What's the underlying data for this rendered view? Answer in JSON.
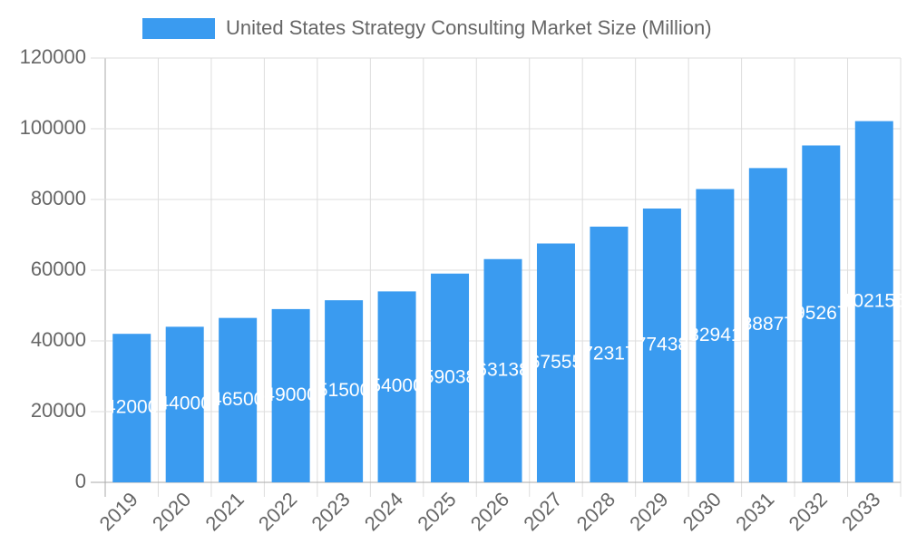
{
  "chart_data": {
    "type": "bar",
    "legend_label": "United States Strategy Consulting Market Size (Million)",
    "categories": [
      "2019",
      "2020",
      "2021",
      "2022",
      "2023",
      "2024",
      "2025",
      "2026",
      "2027",
      "2028",
      "2029",
      "2030",
      "2031",
      "2032",
      "2033"
    ],
    "values": [
      42000,
      44000,
      46500,
      49000,
      51500,
      54000,
      59038,
      63138,
      67555,
      72317,
      77438,
      82941,
      88877,
      95267,
      102155
    ],
    "color": "#3a9bf0",
    "ylim": [
      0,
      120000
    ],
    "yticks": [
      0,
      20000,
      40000,
      60000,
      80000,
      100000,
      120000
    ],
    "grid": true,
    "legend": "top"
  }
}
